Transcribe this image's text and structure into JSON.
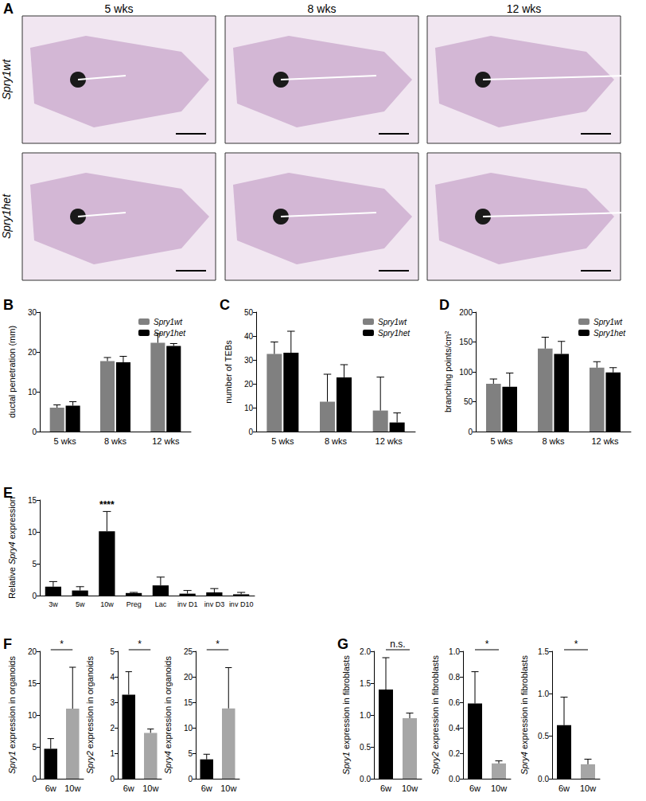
{
  "images": {
    "panel_label": "A",
    "columns": [
      "5 wks",
      "8 wks",
      "12 wks"
    ],
    "rows": [
      "Spry1wt",
      "Spry1het"
    ]
  },
  "chart_data": [
    {
      "panel_label": "B",
      "type": "bar",
      "categories": [
        "5 wks",
        "8 wks",
        "12 wks"
      ],
      "series": [
        {
          "name": "Spry1wt",
          "color": "#808080",
          "values": [
            6.0,
            17.7,
            22.3
          ],
          "errors": [
            0.7,
            0.9,
            2.3
          ]
        },
        {
          "name": "Spry1het",
          "color": "#000000",
          "values": [
            6.5,
            17.4,
            21.5
          ],
          "errors": [
            1.0,
            1.5,
            0.6
          ]
        }
      ],
      "ylabel": "ductal penetration (mm)",
      "ylim": [
        0,
        30
      ],
      "yticks": [
        0,
        10,
        20,
        30
      ],
      "legend": "top-right"
    },
    {
      "panel_label": "C",
      "type": "bar",
      "categories": [
        "5 wks",
        "8 wks",
        "12 wks"
      ],
      "series": [
        {
          "name": "Spry1wt",
          "color": "#808080",
          "values": [
            32.5,
            12.5,
            8.8
          ],
          "errors": [
            5.0,
            11.5,
            14.0
          ]
        },
        {
          "name": "Spry1het",
          "color": "#000000",
          "values": [
            33.0,
            22.7,
            3.8
          ],
          "errors": [
            9.0,
            5.3,
            4.0
          ]
        }
      ],
      "ylabel": "number of TEBs",
      "ylim": [
        0,
        50
      ],
      "yticks": [
        0,
        10,
        20,
        30,
        40,
        50
      ],
      "legend": "top-right"
    },
    {
      "panel_label": "D",
      "type": "bar",
      "categories": [
        "5 wks",
        "8 wks",
        "12 wks"
      ],
      "series": [
        {
          "name": "Spry1wt",
          "color": "#808080",
          "values": [
            80,
            139,
            107
          ],
          "errors": [
            8,
            19,
            10
          ]
        },
        {
          "name": "Spry1het",
          "color": "#000000",
          "values": [
            75,
            130,
            99
          ],
          "errors": [
            23,
            21,
            8
          ]
        }
      ],
      "ylabel": "branching points/cm²",
      "ylim": [
        0,
        200
      ],
      "yticks": [
        0,
        50,
        100,
        150,
        200
      ],
      "legend": "top-right"
    },
    {
      "panel_label": "E",
      "type": "bar",
      "categories": [
        "3w",
        "5w",
        "10w",
        "Preg",
        "Lac",
        "inv D1",
        "inv D3",
        "inv D10"
      ],
      "series": [
        {
          "color": "#000000",
          "values": [
            1.4,
            0.8,
            10.1,
            0.4,
            1.6,
            0.3,
            0.5,
            0.2
          ],
          "errors": [
            0.8,
            0.6,
            3.1,
            0.1,
            1.3,
            0.5,
            0.6,
            0.3
          ]
        }
      ],
      "ylabel": "Relative Spry4 expression",
      "ylim": [
        0,
        15
      ],
      "yticks": [
        0,
        5,
        10,
        15
      ],
      "annotations": [
        {
          "text": "****",
          "category": "10w"
        }
      ]
    },
    {
      "panel_label": "F",
      "type": "bar",
      "categories": [
        "6w",
        "10w"
      ],
      "series": [
        {
          "colors": [
            "#000000",
            "#a6a6a6"
          ],
          "values": [
            4.7,
            11.0
          ],
          "errors": [
            1.6,
            6.5
          ]
        }
      ],
      "ylabel": "Spry1 expression in organoids",
      "ylim": [
        0,
        20
      ],
      "yticks": [
        0,
        5,
        10,
        15,
        20
      ],
      "annotations": [
        {
          "text": "*",
          "bracket": [
            "6w",
            "10w"
          ]
        }
      ]
    },
    {
      "type": "bar",
      "categories": [
        "6w",
        "10w"
      ],
      "series": [
        {
          "colors": [
            "#000000",
            "#a6a6a6"
          ],
          "values": [
            3.3,
            1.8
          ],
          "errors": [
            0.9,
            0.15
          ]
        }
      ],
      "ylabel": "Spry2 expression in organoids",
      "ylim": [
        0,
        5
      ],
      "yticks": [
        0,
        1,
        2,
        3,
        4,
        5
      ],
      "annotations": [
        {
          "text": "*",
          "bracket": [
            "6w",
            "10w"
          ]
        }
      ]
    },
    {
      "type": "bar",
      "categories": [
        "6w",
        "10w"
      ],
      "series": [
        {
          "colors": [
            "#000000",
            "#a6a6a6"
          ],
          "values": [
            3.8,
            13.8
          ],
          "errors": [
            1.0,
            8.0
          ]
        }
      ],
      "ylabel": "Spry4 expression in organoids",
      "ylim": [
        0,
        25
      ],
      "yticks": [
        0,
        5,
        10,
        15,
        20,
        25
      ],
      "annotations": [
        {
          "text": "*",
          "bracket": [
            "6w",
            "10w"
          ]
        }
      ]
    },
    {
      "panel_label": "G",
      "type": "bar",
      "categories": [
        "6w",
        "10w"
      ],
      "series": [
        {
          "colors": [
            "#000000",
            "#a6a6a6"
          ],
          "values": [
            1.4,
            0.95
          ],
          "errors": [
            0.5,
            0.08
          ]
        }
      ],
      "ylabel": "Spry1 expression in fibroblasts",
      "ylim": [
        0,
        2
      ],
      "yticks": [
        {
          "value": 0,
          "label": "0.0"
        },
        0.5,
        {
          "value": 1,
          "label": "1.0"
        },
        1.5,
        {
          "value": 2,
          "label": "2.0"
        }
      ],
      "annotations": [
        {
          "text": "n.s.",
          "bracket": [
            "6w",
            "10w"
          ]
        }
      ]
    },
    {
      "type": "bar",
      "categories": [
        "6w",
        "10w"
      ],
      "series": [
        {
          "colors": [
            "#000000",
            "#a6a6a6"
          ],
          "values": [
            0.59,
            0.12
          ],
          "errors": [
            0.25,
            0.02
          ]
        }
      ],
      "ylabel": "Spry2 expression in fibroblasts",
      "ylim": [
        0,
        1
      ],
      "yticks": [
        {
          "value": 0,
          "label": "0.0"
        },
        0.2,
        0.4,
        0.6,
        0.8,
        {
          "value": 1,
          "label": "1.0"
        }
      ],
      "annotations": [
        {
          "text": "*",
          "bracket": [
            "6w",
            "10w"
          ]
        }
      ]
    },
    {
      "type": "bar",
      "categories": [
        "6w",
        "10w"
      ],
      "series": [
        {
          "colors": [
            "#000000",
            "#a6a6a6"
          ],
          "values": [
            0.63,
            0.17
          ],
          "errors": [
            0.33,
            0.06
          ]
        }
      ],
      "ylabel": "Spry4 expression in fibroblasts",
      "ylim": [
        0,
        1.5
      ],
      "yticks": [
        {
          "value": 0,
          "label": "0.0"
        },
        0.5,
        {
          "value": 1,
          "label": "1.0"
        },
        1.5
      ],
      "annotations": [
        {
          "text": "*",
          "bracket": [
            "6w",
            "10w"
          ]
        }
      ]
    }
  ]
}
